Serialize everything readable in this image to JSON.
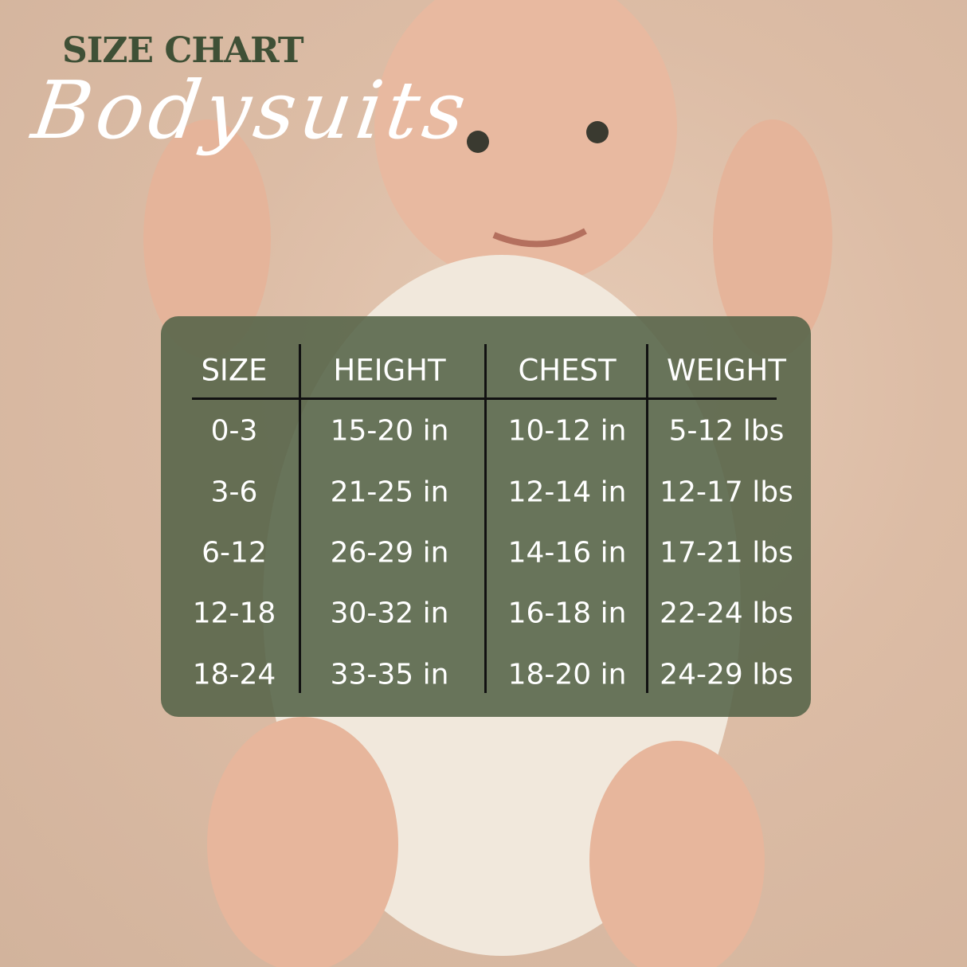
{
  "title": "SIZE CHART",
  "subtitle": "Bodysuits",
  "table": {
    "headers": [
      "SIZE",
      "HEIGHT",
      "CHEST",
      "WEIGHT"
    ],
    "rows": [
      [
        "0-3",
        "15-20 in",
        "10-12 in",
        "5-12 lbs"
      ],
      [
        "3-6",
        "21-25 in",
        "12-14 in",
        "12-17 lbs"
      ],
      [
        "6-12",
        "26-29 in",
        "14-16 in",
        "17-21 lbs"
      ],
      [
        "12-18",
        "30-32 in",
        "16-18 in",
        "22-24 lbs"
      ],
      [
        "18-24",
        "33-35 in",
        "18-20 in",
        "24-29 lbs"
      ]
    ]
  },
  "colors": {
    "title": "#3f5036",
    "panel": "#546348",
    "text": "#ffffff"
  }
}
